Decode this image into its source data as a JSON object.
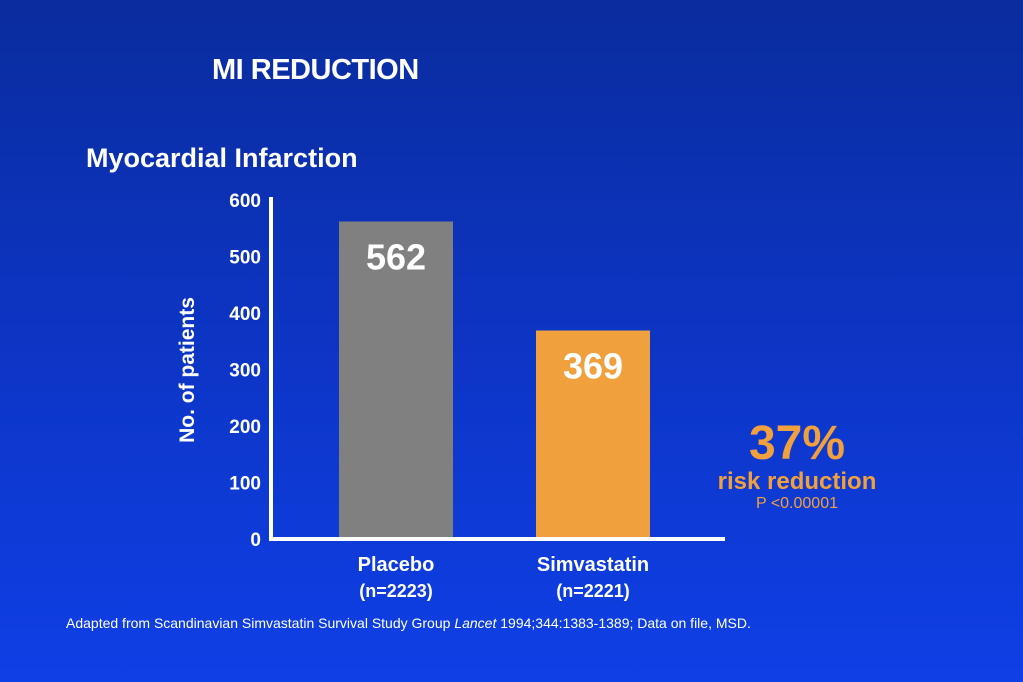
{
  "slide": {
    "title": "MI REDUCTION"
  },
  "chart_data": {
    "type": "bar",
    "title": "Myocardial Infarction",
    "ylabel": "No. of patients",
    "xlabel": "",
    "ylim": [
      0,
      600
    ],
    "yticks": [
      "600",
      "500",
      "400",
      "300",
      "200",
      "100",
      "0"
    ],
    "categories": [
      {
        "name": "Placebo",
        "sub": "(n=2223)"
      },
      {
        "name": "Simvastatin",
        "sub": "(n=2221)"
      }
    ],
    "values": [
      562,
      369
    ],
    "value_labels": [
      "562",
      "369"
    ],
    "bar_colors": [
      "#808080",
      "#f0a03c"
    ],
    "grid": false,
    "legend": false
  },
  "callout": {
    "percent": "37%",
    "label": "risk reduction",
    "pvalue": "P <0.00001",
    "color": "#f0a03c"
  },
  "footnote": {
    "prefix": "Adapted from Scandinavian Simvastatin Survival Study Group ",
    "journal": "Lancet",
    "suffix": " 1994;344:1383-1389; Data on file, MSD."
  }
}
